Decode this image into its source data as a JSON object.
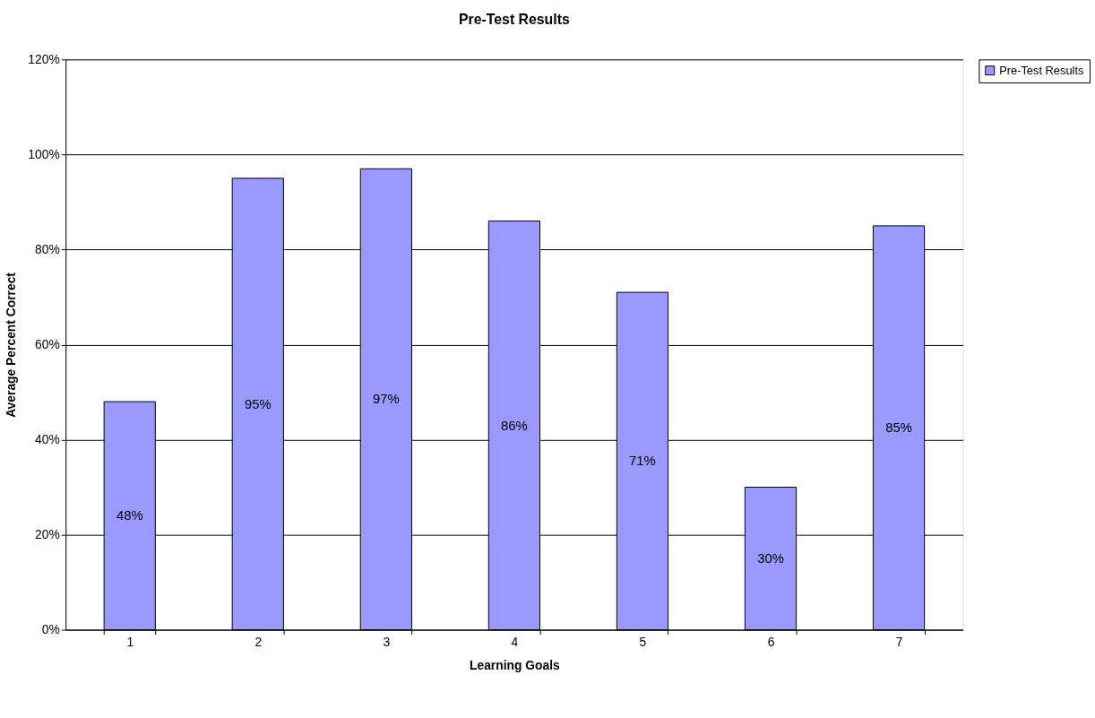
{
  "chart_data": {
    "type": "bar",
    "title": "Pre-Test Results",
    "xlabel": "Learning Goals",
    "ylabel": "Average Percent Correct",
    "categories": [
      "1",
      "2",
      "3",
      "4",
      "5",
      "6",
      "7"
    ],
    "series": [
      {
        "name": "Pre-Test Results",
        "color": "#9999ff",
        "values": [
          48,
          95,
          97,
          86,
          71,
          30,
          85
        ],
        "value_labels": [
          "48%",
          "95%",
          "97%",
          "86%",
          "71%",
          "30%",
          "85%"
        ]
      }
    ],
    "ylim": [
      0,
      120
    ],
    "yticks": [
      {
        "value": 0,
        "label": "0%"
      },
      {
        "value": 20,
        "label": "20%"
      },
      {
        "value": 40,
        "label": "40%"
      },
      {
        "value": 60,
        "label": "60%"
      },
      {
        "value": 80,
        "label": "80%"
      },
      {
        "value": 100,
        "label": "100%"
      },
      {
        "value": 120,
        "label": "120%"
      }
    ],
    "grid": "y",
    "legend": "top right"
  }
}
